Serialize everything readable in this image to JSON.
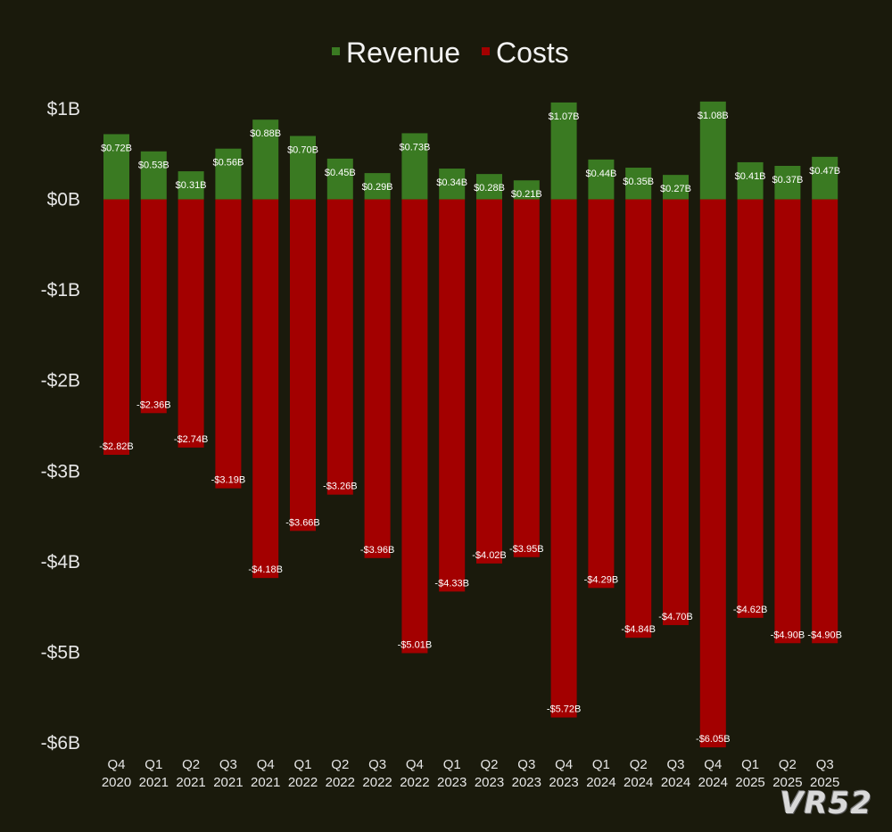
{
  "chart_data": {
    "type": "bar",
    "stacked": true,
    "legend_position": "top-center",
    "grid": false,
    "categories": [
      [
        "Q4",
        "2020"
      ],
      [
        "Q1",
        "2021"
      ],
      [
        "Q2",
        "2021"
      ],
      [
        "Q3",
        "2021"
      ],
      [
        "Q4",
        "2021"
      ],
      [
        "Q1",
        "2022"
      ],
      [
        "Q2",
        "2022"
      ],
      [
        "Q3",
        "2022"
      ],
      [
        "Q4",
        "2022"
      ],
      [
        "Q1",
        "2023"
      ],
      [
        "Q2",
        "2023"
      ],
      [
        "Q3",
        "2023"
      ],
      [
        "Q4",
        "2023"
      ],
      [
        "Q1",
        "2024"
      ],
      [
        "Q2",
        "2024"
      ],
      [
        "Q3",
        "2024"
      ],
      [
        "Q4",
        "2024"
      ],
      [
        "Q1",
        "2025"
      ],
      [
        "Q2",
        "2025"
      ],
      [
        "Q3",
        "2025"
      ]
    ],
    "series": [
      {
        "name": "Revenue",
        "color": "#3a7a22",
        "values": [
          0.72,
          0.53,
          0.31,
          0.56,
          0.88,
          0.7,
          0.45,
          0.29,
          0.73,
          0.34,
          0.28,
          0.21,
          1.07,
          0.44,
          0.35,
          0.27,
          1.08,
          0.41,
          0.37,
          0.47
        ],
        "labels": [
          "$0.72B",
          "$0.53B",
          "$0.31B",
          "$0.56B",
          "$0.88B",
          "$0.70B",
          "$0.45B",
          "$0.29B",
          "$0.73B",
          "$0.34B",
          "$0.28B",
          "$0.21B",
          "$1.07B",
          "$0.44B",
          "$0.35B",
          "$0.27B",
          "$1.08B",
          "$0.41B",
          "$0.37B",
          "$0.47B"
        ]
      },
      {
        "name": "Costs",
        "color": "#a30000",
        "values": [
          -2.82,
          -2.36,
          -2.74,
          -3.19,
          -4.18,
          -3.66,
          -3.26,
          -3.96,
          -5.01,
          -4.33,
          -4.02,
          -3.95,
          -5.72,
          -4.29,
          -4.84,
          -4.7,
          -6.05,
          -4.62,
          -4.9,
          -4.9
        ],
        "labels": [
          "-$2.82B",
          "-$2.36B",
          "-$2.74B",
          "-$3.19B",
          "-$4.18B",
          "-$3.66B",
          "-$3.26B",
          "-$3.96B",
          "-$5.01B",
          "-$4.33B",
          "-$4.02B",
          "-$3.95B",
          "-$5.72B",
          "-$4.29B",
          "-$4.84B",
          "-$4.70B",
          "-$6.05B",
          "-$4.62B",
          "-$4.90B",
          "-$4.90B"
        ]
      }
    ],
    "ylim": [
      -6,
      1
    ],
    "yticks": [
      1,
      0,
      -1,
      -2,
      -3,
      -4,
      -5,
      -6
    ],
    "ytick_labels": [
      "$1B",
      "$0B",
      "-$1B",
      "-$2B",
      "-$3B",
      "-$4B",
      "-$5B",
      "-$6B"
    ]
  },
  "watermark": "VR52"
}
